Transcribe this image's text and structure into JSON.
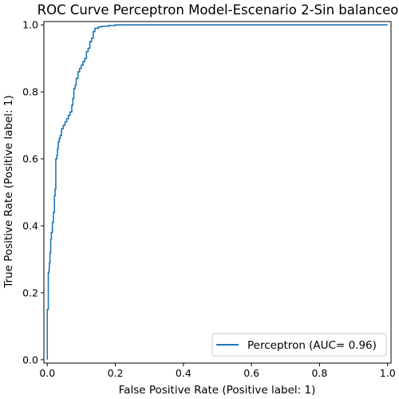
{
  "chart_data": {
    "type": "line",
    "title": "ROC Curve Perceptron Model-Escenario 2-Sin balanceo",
    "xlabel": "False Positive Rate (Positive label: 1)",
    "ylabel": "True Positive Rate (Positive label: 1)",
    "xlim": [
      -0.01,
      1.01
    ],
    "ylim": [
      -0.01,
      1.01
    ],
    "x_ticks": [
      "0.0",
      "0.2",
      "0.4",
      "0.6",
      "0.8",
      "1.0"
    ],
    "y_ticks": [
      "0.0",
      "0.2",
      "0.4",
      "0.6",
      "0.8",
      "1.0"
    ],
    "grid": false,
    "legend_position": "lower-right",
    "series": [
      {
        "name": "Perceptron (AUC= 0.96)",
        "color": "#1f77b4",
        "x": [
          0.0,
          0.0,
          0.003,
          0.003,
          0.005,
          0.006,
          0.008,
          0.01,
          0.012,
          0.015,
          0.018,
          0.021,
          0.023,
          0.025,
          0.025,
          0.028,
          0.03,
          0.032,
          0.035,
          0.038,
          0.042,
          0.047,
          0.052,
          0.057,
          0.062,
          0.067,
          0.072,
          0.075,
          0.078,
          0.082,
          0.085,
          0.09,
          0.095,
          0.1,
          0.105,
          0.11,
          0.115,
          0.12,
          0.125,
          0.13,
          0.135,
          0.14,
          0.15,
          0.16,
          0.18,
          0.2,
          0.22,
          0.3,
          0.5,
          0.7,
          0.9,
          1.0
        ],
        "y": [
          0.0,
          0.12,
          0.15,
          0.24,
          0.26,
          0.27,
          0.29,
          0.32,
          0.36,
          0.38,
          0.41,
          0.44,
          0.49,
          0.51,
          0.58,
          0.6,
          0.61,
          0.63,
          0.65,
          0.66,
          0.67,
          0.69,
          0.7,
          0.71,
          0.72,
          0.73,
          0.74,
          0.76,
          0.78,
          0.81,
          0.82,
          0.84,
          0.86,
          0.87,
          0.88,
          0.89,
          0.9,
          0.92,
          0.93,
          0.95,
          0.96,
          0.98,
          0.99,
          0.994,
          0.996,
          0.998,
          1.0,
          1.0,
          1.0,
          1.0,
          1.0,
          1.0
        ]
      }
    ]
  }
}
